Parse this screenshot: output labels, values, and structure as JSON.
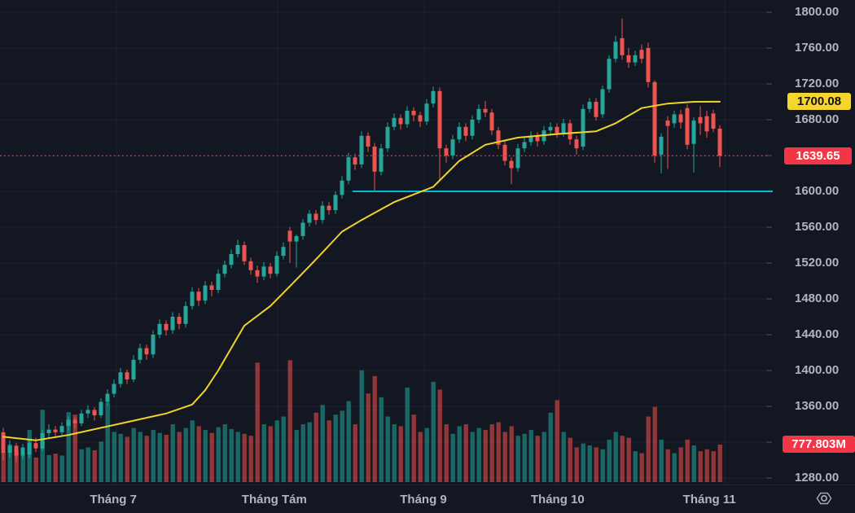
{
  "colors": {
    "background": "#131722",
    "grid": "#1e222d",
    "axis_text": "#b2b5be",
    "up": "#26a69a",
    "down": "#ef5350",
    "volume_up": "rgba(38,166,154,0.55)",
    "volume_down": "rgba(239,83,80,0.55)",
    "ma": "#f2d32b",
    "support": "#00bcd4",
    "last_price": "#f23645",
    "badge_ma_bg": "#f7d52f",
    "badge_ma_text": "#0f1318",
    "badge_red_bg": "#f23645",
    "badge_red_text": "#ffffff"
  },
  "axis_badges": {
    "ma": "1700.08",
    "last_price": "1639.65",
    "last_volume": "777.803M"
  },
  "chart_data": {
    "type": "candlestick",
    "title": "",
    "y_axis": {
      "tick_prices": [
        1800,
        1760,
        1720,
        1680,
        1640,
        1600,
        1560,
        1520,
        1480,
        1440,
        1400,
        1360,
        1320,
        1280
      ],
      "tick_format": "2dp",
      "visible_range": [
        1272,
        1813
      ],
      "grid": true
    },
    "x_axis": {
      "ticks": [
        {
          "label": "Tháng 7",
          "index": 16.9
        },
        {
          "label": "Tháng Tám",
          "index": 41.6
        },
        {
          "label": "Tháng 9",
          "index": 64.5
        },
        {
          "label": "Tháng 10",
          "index": 85.1
        },
        {
          "label": "Tháng 11",
          "index": 108.4
        }
      ],
      "gridline_indices": [
        17.4,
        42.1,
        64.6,
        85.4,
        110.8
      ]
    },
    "candles_ohlcv": [
      [
        1331,
        1336,
        1300,
        1308,
        620
      ],
      [
        1308,
        1322,
        1303,
        1316,
        780
      ],
      [
        1316,
        1319,
        1298,
        1305,
        640
      ],
      [
        1305,
        1318,
        1301,
        1314,
        560
      ],
      [
        1306,
        1322,
        1302,
        1319,
        1080
      ],
      [
        1319,
        1325,
        1309,
        1313,
        510
      ],
      [
        1313,
        1334,
        1310,
        1330,
        1500
      ],
      [
        1330,
        1340,
        1324,
        1334,
        560
      ],
      [
        1334,
        1338,
        1326,
        1331,
        590
      ],
      [
        1331,
        1342,
        1328,
        1338,
        550
      ],
      [
        1338,
        1349,
        1333,
        1345,
        1450
      ],
      [
        1345,
        1348,
        1335,
        1341,
        1400
      ],
      [
        1341,
        1356,
        1338,
        1352,
        680
      ],
      [
        1352,
        1361,
        1347,
        1356,
        720
      ],
      [
        1356,
        1359,
        1344,
        1350,
        660
      ],
      [
        1350,
        1369,
        1347,
        1365,
        840
      ],
      [
        1365,
        1379,
        1361,
        1374,
        1650
      ],
      [
        1374,
        1390,
        1370,
        1385,
        1040
      ],
      [
        1385,
        1403,
        1381,
        1398,
        1000
      ],
      [
        1398,
        1401,
        1385,
        1390,
        940
      ],
      [
        1390,
        1417,
        1387,
        1412,
        1120
      ],
      [
        1412,
        1430,
        1408,
        1425,
        1040
      ],
      [
        1425,
        1429,
        1412,
        1418,
        960
      ],
      [
        1418,
        1445,
        1414,
        1440,
        1080
      ],
      [
        1440,
        1457,
        1436,
        1452,
        1020
      ],
      [
        1452,
        1456,
        1439,
        1445,
        980
      ],
      [
        1445,
        1465,
        1441,
        1460,
        1200
      ],
      [
        1460,
        1464,
        1446,
        1452,
        1040
      ],
      [
        1452,
        1477,
        1448,
        1472,
        1120
      ],
      [
        1472,
        1493,
        1468,
        1488,
        1280
      ],
      [
        1488,
        1492,
        1472,
        1478,
        1160
      ],
      [
        1478,
        1500,
        1474,
        1495,
        1080
      ],
      [
        1495,
        1499,
        1483,
        1490,
        1020
      ],
      [
        1490,
        1513,
        1486,
        1508,
        1140
      ],
      [
        1508,
        1523,
        1504,
        1518,
        1200
      ],
      [
        1518,
        1535,
        1514,
        1530,
        1100
      ],
      [
        1530,
        1546,
        1526,
        1540,
        1040
      ],
      [
        1540,
        1544,
        1518,
        1522,
        1000
      ],
      [
        1522,
        1526,
        1507,
        1512,
        960
      ],
      [
        1512,
        1517,
        1498,
        1505,
        2480
      ],
      [
        1505,
        1521,
        1501,
        1516,
        1200
      ],
      [
        1516,
        1520,
        1503,
        1508,
        1160
      ],
      [
        1508,
        1533,
        1505,
        1528,
        1280
      ],
      [
        1528,
        1543,
        1524,
        1538,
        1360
      ],
      [
        1556,
        1560,
        1520,
        1544,
        2530
      ],
      [
        1544,
        1552,
        1515,
        1550,
        1080
      ],
      [
        1550,
        1569,
        1546,
        1565,
        1200
      ],
      [
        1565,
        1579,
        1561,
        1575,
        1240
      ],
      [
        1575,
        1579,
        1563,
        1568,
        1440
      ],
      [
        1568,
        1589,
        1564,
        1584,
        1600
      ],
      [
        1584,
        1588,
        1574,
        1579,
        1280
      ],
      [
        1579,
        1600,
        1575,
        1596,
        1400
      ],
      [
        1596,
        1617,
        1592,
        1612,
        1480
      ],
      [
        1612,
        1643,
        1608,
        1638,
        1680
      ],
      [
        1638,
        1642,
        1624,
        1630,
        1200
      ],
      [
        1630,
        1667,
        1626,
        1662,
        2320
      ],
      [
        1662,
        1666,
        1644,
        1650,
        1840
      ],
      [
        1650,
        1654,
        1600,
        1622,
        2200
      ],
      [
        1622,
        1653,
        1618,
        1648,
        1760
      ],
      [
        1648,
        1677,
        1644,
        1672,
        1360
      ],
      [
        1672,
        1687,
        1668,
        1682,
        1200
      ],
      [
        1682,
        1686,
        1669,
        1675,
        1160
      ],
      [
        1675,
        1695,
        1671,
        1690,
        1960
      ],
      [
        1690,
        1694,
        1678,
        1685,
        1400
      ],
      [
        1685,
        1689,
        1672,
        1678,
        1040
      ],
      [
        1678,
        1703,
        1674,
        1698,
        1120
      ],
      [
        1698,
        1717,
        1694,
        1712,
        2080
      ],
      [
        1712,
        1716,
        1612,
        1648,
        1920
      ],
      [
        1648,
        1652,
        1632,
        1640,
        1200
      ],
      [
        1640,
        1663,
        1636,
        1658,
        1000
      ],
      [
        1658,
        1677,
        1654,
        1672,
        1160
      ],
      [
        1672,
        1676,
        1656,
        1662,
        1200
      ],
      [
        1662,
        1685,
        1658,
        1680,
        1040
      ],
      [
        1680,
        1697,
        1676,
        1692,
        1120
      ],
      [
        1692,
        1701,
        1683,
        1688,
        1080
      ],
      [
        1688,
        1692,
        1663,
        1668,
        1200
      ],
      [
        1668,
        1672,
        1647,
        1652,
        1240
      ],
      [
        1652,
        1656,
        1629,
        1634,
        1040
      ],
      [
        1634,
        1638,
        1608,
        1626,
        1160
      ],
      [
        1626,
        1653,
        1622,
        1648,
        960
      ],
      [
        1648,
        1660,
        1644,
        1655,
        1000
      ],
      [
        1655,
        1667,
        1651,
        1662,
        1080
      ],
      [
        1662,
        1666,
        1650,
        1656,
        960
      ],
      [
        1656,
        1673,
        1652,
        1668,
        1040
      ],
      [
        1668,
        1677,
        1664,
        1672,
        1440
      ],
      [
        1672,
        1676,
        1660,
        1665,
        1700
      ],
      [
        1665,
        1681,
        1661,
        1676,
        1040
      ],
      [
        1676,
        1680,
        1652,
        1658,
        920
      ],
      [
        1658,
        1662,
        1641,
        1648,
        720
      ],
      [
        1650,
        1697,
        1646,
        1692,
        800
      ],
      [
        1692,
        1704,
        1688,
        1700,
        760
      ],
      [
        1700,
        1704,
        1679,
        1683,
        720
      ],
      [
        1686,
        1718,
        1682,
        1714,
        680
      ],
      [
        1714,
        1752,
        1710,
        1748,
        880
      ],
      [
        1748,
        1774,
        1744,
        1767,
        1040
      ],
      [
        1771,
        1793,
        1747,
        1752,
        960
      ],
      [
        1752,
        1760,
        1738,
        1744,
        920
      ],
      [
        1744,
        1757,
        1740,
        1752,
        640
      ],
      [
        1758,
        1764,
        1743,
        1748,
        600
      ],
      [
        1760,
        1766,
        1716,
        1722,
        1360
      ],
      [
        1722,
        1724,
        1632,
        1640,
        1560
      ],
      [
        1641,
        1665,
        1620,
        1661,
        880
      ],
      [
        1679,
        1684,
        1625,
        1673,
        680
      ],
      [
        1676,
        1690,
        1671,
        1686,
        600
      ],
      [
        1686,
        1691,
        1670,
        1677,
        720
      ],
      [
        1693,
        1697,
        1647,
        1652,
        880
      ],
      [
        1653,
        1683,
        1621,
        1679,
        760
      ],
      [
        1683,
        1695,
        1663,
        1676,
        640
      ],
      [
        1684,
        1690,
        1660,
        1667,
        680
      ],
      [
        1687,
        1691,
        1666,
        1670,
        640
      ],
      [
        1670,
        1674,
        1627,
        1639.65,
        777.803
      ]
    ],
    "volume_unit": "millions",
    "overlays": {
      "ma_line": {
        "name": "moving-average",
        "last_value": 1700.08,
        "anchors": [
          [
            0,
            1326
          ],
          [
            5,
            1322
          ],
          [
            10,
            1328
          ],
          [
            15,
            1336
          ],
          [
            20,
            1344
          ],
          [
            25,
            1352
          ],
          [
            29,
            1362
          ],
          [
            31,
            1378
          ],
          [
            33,
            1400
          ],
          [
            37,
            1450
          ],
          [
            41,
            1472
          ],
          [
            44,
            1494
          ],
          [
            48,
            1524
          ],
          [
            52,
            1555
          ],
          [
            55,
            1568
          ],
          [
            60,
            1588
          ],
          [
            66,
            1605
          ],
          [
            70,
            1634
          ],
          [
            74,
            1652
          ],
          [
            79,
            1660
          ],
          [
            85,
            1664
          ],
          [
            91,
            1667
          ],
          [
            94,
            1676
          ],
          [
            98,
            1693
          ],
          [
            102,
            1698
          ],
          [
            106,
            1700
          ],
          [
            110,
            1700.08
          ]
        ]
      },
      "support_line": {
        "price": 1600,
        "from_index": 53.6,
        "extends_to_axis": true
      },
      "last_price_line": {
        "price": 1639.65,
        "style": "dotted"
      }
    },
    "last_close": 1639.65,
    "last_volume_label": "777.803M"
  }
}
